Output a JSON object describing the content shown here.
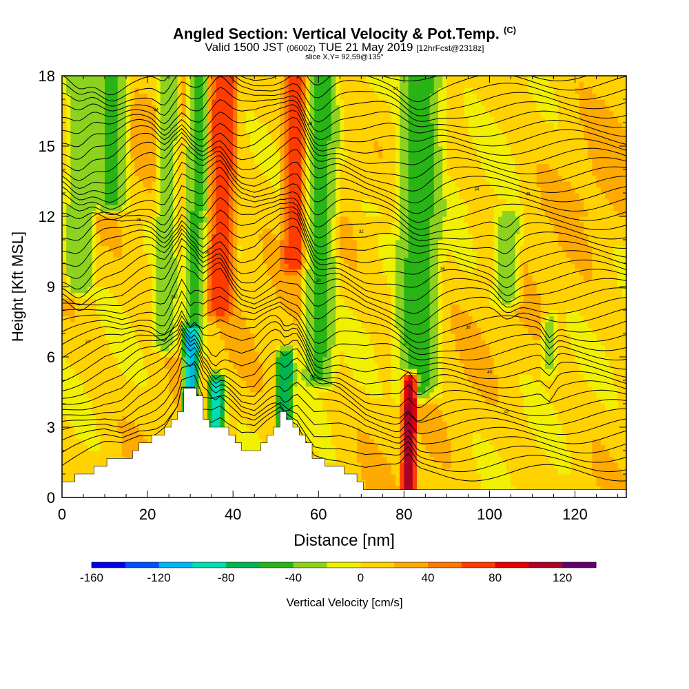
{
  "title": {
    "main": "Angled Section: Vertical Velocity & Pot.Temp.",
    "copyright": "(C)",
    "valid_prefix": "Valid 1500 JST",
    "valid_utc": "(0600Z)",
    "valid_date": "TUE 21 May 2019",
    "forecast": "[12hrFcst@2318z]",
    "slice": "slice X,Y= 92,59@135°"
  },
  "chart_data": {
    "type": "heatmap",
    "xlabel": "Distance [nm]",
    "ylabel": "Height [Kft MSL]",
    "xlim": [
      0,
      132
    ],
    "ylim": [
      0,
      18
    ],
    "x_ticks": [
      "0",
      "20",
      "40",
      "60",
      "80",
      "100",
      "120"
    ],
    "y_ticks": [
      "0",
      "3",
      "6",
      "9",
      "12",
      "15",
      "18"
    ],
    "colorbar": {
      "label": "Vertical Velocity [cm/s]",
      "range": [
        -160,
        140
      ],
      "step": 20,
      "tick_labels": [
        "-160",
        "-120",
        "-80",
        "-40",
        "0",
        "40",
        "80",
        "120"
      ],
      "colors": [
        "#0000e6",
        "#0050ff",
        "#00b4f0",
        "#00dcb4",
        "#00b450",
        "#28b414",
        "#8cd21e",
        "#f0f000",
        "#ffd200",
        "#ffaa00",
        "#ff7800",
        "#ff3c00",
        "#e60000",
        "#aa0028",
        "#64006e"
      ]
    },
    "velocity_features": [
      {
        "x_center": 4,
        "halfwidth": 2,
        "h_from": 9,
        "h_to": 18,
        "value": -40
      },
      {
        "x_center": 11,
        "halfwidth": 2.5,
        "h_from": 12.5,
        "h_to": 18,
        "value": -45
      },
      {
        "x_center": 24,
        "halfwidth": 1.5,
        "h_from": 6.5,
        "h_to": 18,
        "value": -35
      },
      {
        "x_center": 31,
        "halfwidth": 1.5,
        "h_from": 6.5,
        "h_to": 18,
        "value": -45
      },
      {
        "x_center": 37,
        "halfwidth": 1.8,
        "h_from": 8,
        "h_to": 18,
        "value": 75
      },
      {
        "x_center": 54.5,
        "halfwidth": 1.8,
        "h_from": 10,
        "h_to": 18,
        "value": 75
      },
      {
        "x_center": 60,
        "halfwidth": 2.2,
        "h_from": 5,
        "h_to": 18,
        "value": -45
      },
      {
        "x_center": 83,
        "halfwidth": 3,
        "h_from": 4.5,
        "h_to": 18,
        "value": -50
      },
      {
        "x_center": 81,
        "halfwidth": 1,
        "h_from": 0.3,
        "h_to": 5,
        "value": 115
      },
      {
        "x_center": 104,
        "halfwidth": 1.8,
        "h_from": 8.5,
        "h_to": 12,
        "value": -35
      },
      {
        "x_center": 114,
        "halfwidth": 1,
        "h_from": 5.5,
        "h_to": 7.5,
        "value": -30
      },
      {
        "x_center": 30,
        "halfwidth": 1,
        "h_from": 3.5,
        "h_to": 7,
        "value": -110
      },
      {
        "x_center": 36,
        "halfwidth": 1.2,
        "h_from": 2.8,
        "h_to": 5,
        "value": -90
      },
      {
        "x_center": 52,
        "halfwidth": 1.2,
        "h_from": 3,
        "h_to": 6,
        "value": -80
      }
    ],
    "terrain": [
      [
        0,
        0.6
      ],
      [
        5,
        1.0
      ],
      [
        10,
        1.5
      ],
      [
        14,
        1.6
      ],
      [
        18,
        2.3
      ],
      [
        22,
        2.6
      ],
      [
        24,
        2.9
      ],
      [
        27,
        3.8
      ],
      [
        28,
        4.6
      ],
      [
        31,
        4.6
      ],
      [
        33,
        3.2
      ],
      [
        35,
        3.0
      ],
      [
        37,
        3.1
      ],
      [
        39,
        2.6
      ],
      [
        42,
        2.0
      ],
      [
        45,
        2.0
      ],
      [
        48,
        2.8
      ],
      [
        51,
        3.5
      ],
      [
        53,
        3.2
      ],
      [
        55,
        3.0
      ],
      [
        57,
        2.3
      ],
      [
        59,
        1.6
      ],
      [
        62,
        1.4
      ],
      [
        65,
        1.2
      ],
      [
        68,
        0.8
      ],
      [
        71,
        0.4
      ],
      [
        74,
        0.3
      ],
      [
        80,
        0.2
      ],
      [
        132,
        0.2
      ]
    ],
    "isentrope_labels": [
      "24",
      "26",
      "28",
      "30",
      "32",
      "34",
      "36",
      "38",
      "40",
      "42",
      "44",
      "46",
      "48"
    ]
  }
}
